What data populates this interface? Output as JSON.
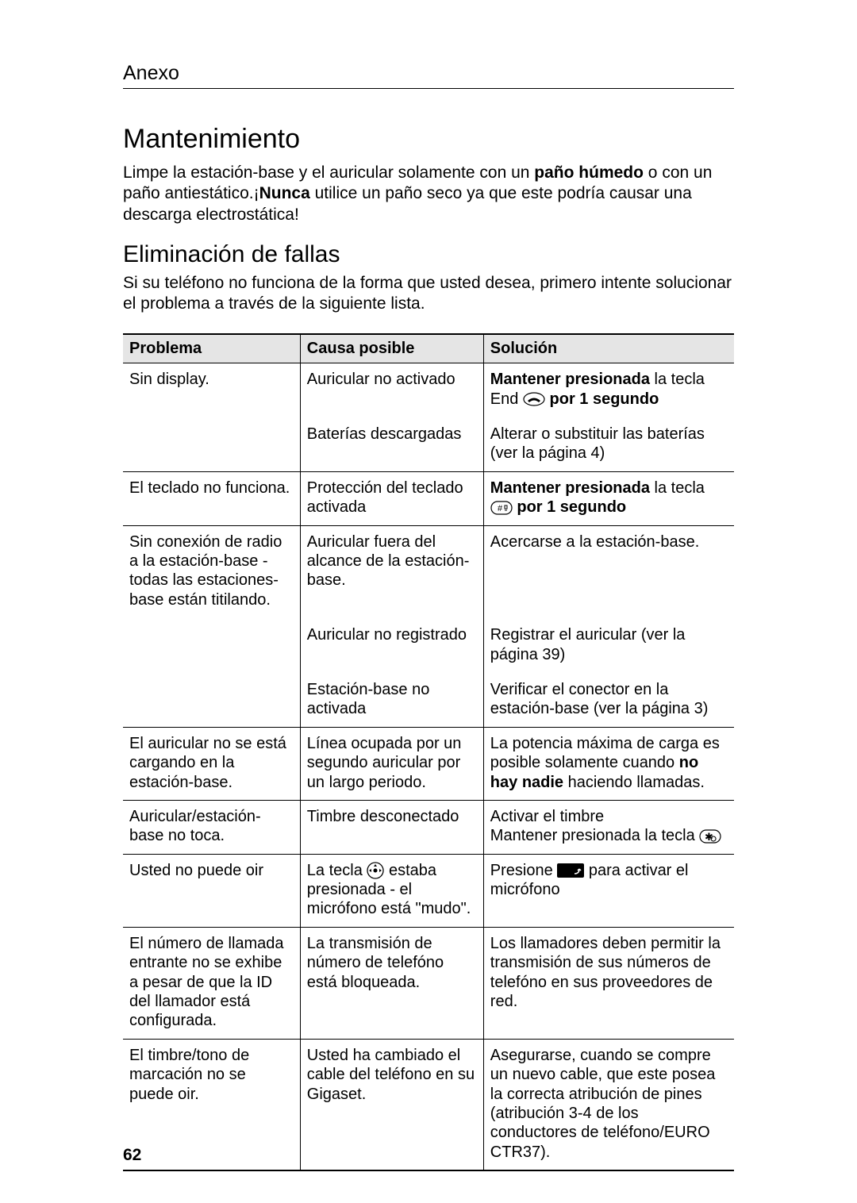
{
  "header": "Anexo",
  "h1": "Mantenimiento",
  "p1_pre": "Limpe la estación-base y el auricular solamente con un ",
  "p1_b1": "paño húmedo",
  "p1_mid": " o con un paño antiestático.¡",
  "p1_b2": "Nunca",
  "p1_post": " utilice un paño seco ya que este podría causar una descarga electrostática!",
  "h2": "Eliminación de fallas",
  "p2": "Si su teléfono no funciona de la forma que usted desea, primero intente solucionar el problema a través de la siguiente lista.",
  "table": {
    "headers": {
      "c1": "Problema",
      "c2": "Causa posible",
      "c3": "Solución"
    },
    "rows": [
      {
        "c1": "Sin display.",
        "c2": "Auricular no activado",
        "c3_b1": "Mantener presionada",
        "c3_t1": " la tecla End ",
        "c3_icon": "end-icon",
        "c3_b2": " por 1 segundo",
        "bottom": false,
        "sep": true
      },
      {
        "c1": "",
        "c2": "Baterías descargadas",
        "c3_t1": "Alterar o substituir las baterías (ver la página 4)",
        "bottom": true,
        "sep": true
      },
      {
        "c1": "El teclado no funciona.",
        "c2": "Protección del teclado activada",
        "c3_b1": "Mantener presionada",
        "c3_t1": " la tecla ",
        "c3_icon": "hash-icon",
        "c3_b2": " por 1 segundo",
        "bottom": true,
        "sep": true
      },
      {
        "c1": "Sin conexión de radio a la estación-base - todas las estaciones-base están titilando.",
        "c2": "Auricular fuera del alcance de la estación-base.",
        "c3_t1": "Acercarse a la estación-base.",
        "bottom": false,
        "sep": true
      },
      {
        "c1": "",
        "c2": "Auricular no registrado",
        "c3_t1": "Registrar el auricular (ver la página 39)",
        "bottom": false,
        "sep": true
      },
      {
        "c1": "",
        "c2": "Estación-base no activada",
        "c3_t1": "Verificar el conector en la estación-base (ver la página 3)",
        "bottom": true,
        "sep": true
      },
      {
        "c1": "El auricular no se está cargando en la estación-base.",
        "c2": "Línea ocupada por un segundo auricular por un largo periodo.",
        "c3_t1": "La potencia máxima de carga es posible solamente cuando ",
        "c3_b1": "no hay nadie",
        "c3_t2": " haciendo llamadas.",
        "bottom": true,
        "sep": true
      },
      {
        "c1": "Auricular/estación-base no toca.",
        "c2": "Timbre desconectado",
        "c3_t1": "Activar el timbre\nMantener presionada la tecla ",
        "c3_icon": "star-icon",
        "bottom": true,
        "sep": true
      },
      {
        "c1": "Usted no puede oir",
        "c2_t1": "La tecla ",
        "c2_icon": "nav-icon",
        "c2_t2": " estaba presionada - el micrófono está \"mudo\".",
        "c3_t1": "Presione ",
        "c3_icon": "softkey-icon",
        "c3_t2": " para activar el micrófono",
        "bottom": true,
        "sep": true
      },
      {
        "c1": "El número de llamada entrante no se exhibe a pesar de que la ID del llamador está configurada.",
        "c2": "La transmisión de número de telefóno está bloqueada.",
        "c3_t1": "Los llamadores deben permitir la transmisión de sus números de telefóno en sus proveedores de red.",
        "bottom": true,
        "sep": true
      },
      {
        "c1": "El timbre/tono de marcación no se puede oir.",
        "c2": "Usted ha cambiado el cable del teléfono en su Gigaset.",
        "c3_t1": "Asegurarse, cuando se compre un nuevo cable, que este posea la correcta atribución de pines (atribución 3-4 de los conductores de teléfono/EURO CTR37).",
        "bottom": true,
        "sep": true,
        "last": true
      }
    ]
  },
  "page_number": "62",
  "colors": {
    "bg": "#ffffff",
    "text": "#000000",
    "header_bg": "#e5e5e5"
  }
}
